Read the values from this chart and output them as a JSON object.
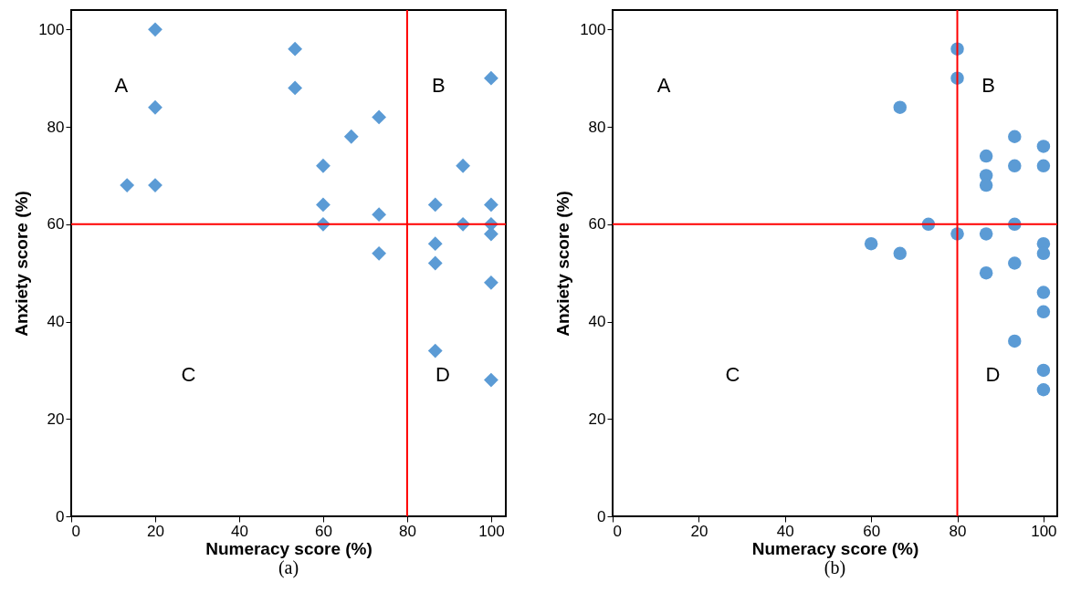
{
  "chart_data": [
    {
      "type": "scatter",
      "title": "(a)",
      "xlabel": "Numeracy score (%)",
      "ylabel": "Anxiety score (%)",
      "marker": "diamond",
      "grid": false,
      "x": [
        20,
        53.3,
        53.3,
        20,
        100,
        73.3,
        66.7,
        60,
        93.3,
        13.3,
        20,
        60,
        86.7,
        100,
        73.3,
        60,
        93.3,
        100,
        100,
        86.7,
        73.3,
        86.7,
        100,
        86.7,
        100
      ],
      "series": [
        {
          "color": "#5b9bd5",
          "values": [
            100,
            96,
            88,
            84,
            90,
            82,
            78,
            72,
            72,
            68,
            68,
            64,
            64,
            64,
            62,
            60,
            60,
            60,
            58,
            56,
            54,
            52,
            48,
            34,
            28
          ]
        }
      ],
      "xlim": [
        0,
        103.5
      ],
      "xticks": [
        0,
        20,
        40,
        60,
        80,
        100
      ],
      "ylim": [
        0,
        104
      ],
      "yticks": [
        0,
        20,
        40,
        60,
        80,
        100
      ],
      "ref_lines": [
        {
          "axis": "x",
          "value": 80,
          "color": "#ff0000"
        },
        {
          "axis": "y",
          "value": 60,
          "color": "#ff0000"
        }
      ],
      "annotations": [
        "A",
        "B",
        "C",
        "D"
      ]
    },
    {
      "type": "scatter",
      "title": "(b)",
      "xlabel": "Numeracy score (%)",
      "ylabel": "Anxiety score (%)",
      "marker": "circle",
      "grid": false,
      "x": [
        80,
        80,
        66.7,
        93.3,
        100,
        86.7,
        93.3,
        100,
        86.7,
        86.7,
        73.3,
        93.3,
        80,
        86.7,
        60,
        100,
        66.7,
        100,
        93.3,
        86.7,
        100,
        100,
        93.3,
        100,
        100
      ],
      "series": [
        {
          "color": "#5b9bd5",
          "values": [
            96,
            90,
            84,
            78,
            76,
            74,
            72,
            72,
            70,
            68,
            60,
            60,
            58,
            58,
            56,
            56,
            54,
            54,
            52,
            50,
            46,
            42,
            36,
            30,
            26
          ]
        }
      ],
      "xlim": [
        0,
        103.2
      ],
      "xticks": [
        0,
        20,
        40,
        60,
        80,
        100
      ],
      "ylim": [
        0,
        104
      ],
      "yticks": [
        0,
        20,
        40,
        60,
        80,
        100
      ],
      "ref_lines": [
        {
          "axis": "x",
          "value": 80,
          "color": "#ff0000"
        },
        {
          "axis": "y",
          "value": 60,
          "color": "#ff0000"
        }
      ],
      "annotations": [
        "A",
        "B",
        "C",
        "D"
      ]
    }
  ]
}
